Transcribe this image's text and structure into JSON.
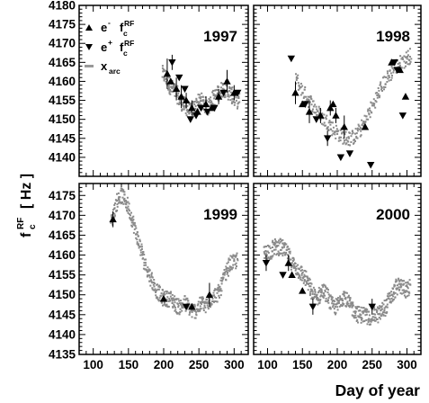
{
  "chart_data": {
    "type": "scatter",
    "layout": "2x2 panels",
    "xlabel": "Day of year",
    "ylabel": "f_c^RF [ Hz ]",
    "ylabel_main": "f",
    "ylabel_sub": "c",
    "ylabel_sup": "RF",
    "ylabel_unit": "[ Hz ]",
    "legend": {
      "placement": "top-left of 1997 panel",
      "entries": [
        {
          "marker": "triangle-up",
          "main": "e",
          "sup": "-",
          "label": "f",
          "label_sub": "c",
          "label_sup": "RF",
          "text": "e- fc RF"
        },
        {
          "marker": "triangle-down",
          "main": "e",
          "sup": "+",
          "label": "f",
          "label_sub": "c",
          "label_sup": "RF",
          "text": "e+ fc RF"
        },
        {
          "marker": "dash-gray",
          "main": "x",
          "sub": "arc",
          "text": "x arc"
        }
      ]
    },
    "x_ticks": [
      100,
      150,
      200,
      250,
      300
    ],
    "xlim": [
      80,
      320
    ],
    "panels": [
      {
        "year": "1997",
        "ylim": [
          4135,
          4180
        ],
        "y_ticks": [
          4140,
          4145,
          4150,
          4155,
          4160,
          4165,
          4170,
          4175,
          4180
        ],
        "arc": [
          [
            198,
            4162
          ],
          [
            203,
            4161
          ],
          [
            208,
            4159
          ],
          [
            213,
            4158
          ],
          [
            218,
            4157
          ],
          [
            223,
            4155
          ],
          [
            228,
            4154
          ],
          [
            233,
            4153
          ],
          [
            238,
            4152
          ],
          [
            243,
            4153
          ],
          [
            248,
            4154
          ],
          [
            253,
            4155
          ],
          [
            258,
            4154
          ],
          [
            263,
            4153
          ],
          [
            268,
            4155
          ],
          [
            273,
            4156
          ],
          [
            278,
            4157
          ],
          [
            283,
            4158
          ],
          [
            288,
            4158
          ],
          [
            293,
            4157
          ],
          [
            298,
            4156
          ],
          [
            303,
            4155
          ],
          [
            308,
            4155
          ]
        ],
        "arc_spread": 2.2,
        "electrons": [
          [
            205,
            4162,
            4
          ],
          [
            210,
            4160,
            0
          ],
          [
            218,
            4158,
            3
          ],
          [
            225,
            4156,
            3
          ],
          [
            232,
            4155,
            2
          ],
          [
            240,
            4153,
            2
          ],
          [
            248,
            4152,
            0
          ],
          [
            260,
            4154,
            2
          ],
          [
            268,
            4153,
            0
          ],
          [
            278,
            4156,
            2
          ],
          [
            290,
            4160,
            3
          ],
          [
            300,
            4157,
            2
          ]
        ],
        "positrons": [
          [
            212,
            4165,
            2
          ],
          [
            222,
            4161,
            0
          ],
          [
            230,
            4158,
            0
          ],
          [
            238,
            4150,
            0
          ],
          [
            246,
            4151,
            0
          ],
          [
            253,
            4153,
            0
          ],
          [
            262,
            4152,
            0
          ],
          [
            272,
            4153,
            0
          ],
          [
            285,
            4157,
            0
          ],
          [
            305,
            4157,
            0
          ]
        ]
      },
      {
        "year": "1998",
        "ylim": [
          4135,
          4180
        ],
        "y_ticks": [
          4140,
          4145,
          4150,
          4155,
          4160,
          4165,
          4170,
          4175,
          4180
        ],
        "arc": [
          [
            140,
            4161
          ],
          [
            148,
            4158
          ],
          [
            156,
            4156
          ],
          [
            164,
            4154
          ],
          [
            172,
            4152
          ],
          [
            180,
            4150
          ],
          [
            188,
            4149
          ],
          [
            196,
            4147
          ],
          [
            204,
            4146
          ],
          [
            212,
            4145
          ],
          [
            220,
            4145
          ],
          [
            228,
            4146
          ],
          [
            236,
            4148
          ],
          [
            244,
            4151
          ],
          [
            252,
            4154
          ],
          [
            260,
            4157
          ],
          [
            268,
            4160
          ],
          [
            276,
            4162
          ],
          [
            284,
            4164
          ],
          [
            292,
            4165
          ],
          [
            300,
            4166
          ],
          [
            306,
            4167
          ]
        ],
        "arc_spread": 2.0,
        "electrons": [
          [
            140,
            4157,
            3
          ],
          [
            150,
            4154,
            0
          ],
          [
            160,
            4152,
            3
          ],
          [
            176,
            4151,
            2
          ],
          [
            190,
            4153,
            2
          ],
          [
            194,
            4154,
            0
          ],
          [
            198,
            4151,
            2
          ],
          [
            210,
            4148,
            3
          ],
          [
            240,
            4148,
            0
          ],
          [
            278,
            4165,
            0
          ],
          [
            290,
            4163,
            0
          ],
          [
            298,
            4156,
            0
          ]
        ],
        "positrons": [
          [
            134,
            4166,
            0
          ],
          [
            154,
            4154,
            0
          ],
          [
            170,
            4150,
            0
          ],
          [
            186,
            4145,
            2
          ],
          [
            205,
            4140,
            0
          ],
          [
            218,
            4141,
            0
          ],
          [
            248,
            4138,
            0
          ],
          [
            282,
            4165,
            0
          ],
          [
            286,
            4163,
            0
          ],
          [
            294,
            4151,
            0
          ]
        ]
      },
      {
        "year": "1999",
        "ylim": [
          4135,
          4178
        ],
        "y_ticks": [
          4135,
          4140,
          4145,
          4150,
          4155,
          4160,
          4165,
          4170,
          4175
        ],
        "arc": [
          [
            125,
            4168
          ],
          [
            130,
            4171
          ],
          [
            135,
            4174
          ],
          [
            140,
            4175
          ],
          [
            145,
            4174
          ],
          [
            150,
            4172
          ],
          [
            155,
            4169
          ],
          [
            160,
            4166
          ],
          [
            165,
            4163
          ],
          [
            170,
            4160
          ],
          [
            175,
            4157
          ],
          [
            180,
            4155
          ],
          [
            185,
            4153
          ],
          [
            190,
            4151
          ],
          [
            195,
            4150
          ],
          [
            200,
            4149
          ],
          [
            205,
            4149
          ],
          [
            210,
            4149
          ],
          [
            215,
            4148
          ],
          [
            220,
            4147
          ],
          [
            225,
            4147
          ],
          [
            230,
            4148
          ],
          [
            235,
            4147
          ],
          [
            240,
            4146
          ],
          [
            245,
            4146
          ],
          [
            250,
            4147
          ],
          [
            255,
            4148
          ],
          [
            260,
            4147
          ],
          [
            265,
            4148
          ],
          [
            270,
            4150
          ],
          [
            275,
            4150
          ],
          [
            280,
            4151
          ],
          [
            285,
            4154
          ],
          [
            290,
            4156
          ],
          [
            295,
            4158
          ],
          [
            300,
            4158
          ],
          [
            305,
            4159
          ]
        ],
        "arc_spread": 2.0,
        "electrons": [
          [
            128,
            4169,
            2
          ],
          [
            200,
            4149,
            0
          ],
          [
            240,
            4147,
            0
          ],
          [
            265,
            4150,
            3
          ]
        ],
        "positrons": [
          [
            232,
            4147,
            0
          ]
        ]
      },
      {
        "year": "2000",
        "ylim": [
          4135,
          4178
        ],
        "y_ticks": [
          4135,
          4140,
          4145,
          4150,
          4155,
          4160,
          4165,
          4170,
          4175
        ],
        "arc": [
          [
            95,
            4160
          ],
          [
            100,
            4161
          ],
          [
            105,
            4161
          ],
          [
            110,
            4162
          ],
          [
            115,
            4162
          ],
          [
            120,
            4162
          ],
          [
            125,
            4161
          ],
          [
            130,
            4160
          ],
          [
            135,
            4158
          ],
          [
            140,
            4157
          ],
          [
            145,
            4156
          ],
          [
            150,
            4155
          ],
          [
            155,
            4154
          ],
          [
            160,
            4152
          ],
          [
            165,
            4150
          ],
          [
            170,
            4149
          ],
          [
            175,
            4150
          ],
          [
            180,
            4151
          ],
          [
            185,
            4150
          ],
          [
            190,
            4148
          ],
          [
            195,
            4147
          ],
          [
            200,
            4147
          ],
          [
            205,
            4149
          ],
          [
            210,
            4150
          ],
          [
            215,
            4148
          ],
          [
            220,
            4147
          ],
          [
            225,
            4146
          ],
          [
            230,
            4145
          ],
          [
            235,
            4145
          ],
          [
            240,
            4145
          ],
          [
            245,
            4144
          ],
          [
            250,
            4145
          ],
          [
            255,
            4145
          ],
          [
            260,
            4145
          ],
          [
            265,
            4146
          ],
          [
            270,
            4147
          ],
          [
            275,
            4149
          ],
          [
            280,
            4150
          ],
          [
            285,
            4152
          ],
          [
            290,
            4152
          ],
          [
            295,
            4152
          ],
          [
            300,
            4151
          ],
          [
            305,
            4152
          ]
        ],
        "arc_spread": 2.1,
        "electrons": [
          [
            130,
            4158,
            2
          ],
          [
            135,
            4155,
            0
          ],
          [
            150,
            4151,
            0
          ]
        ],
        "positrons": [
          [
            98,
            4158,
            2
          ],
          [
            122,
            4155,
            0
          ],
          [
            165,
            4147,
            2
          ],
          [
            250,
            4147,
            2
          ]
        ]
      }
    ]
  }
}
